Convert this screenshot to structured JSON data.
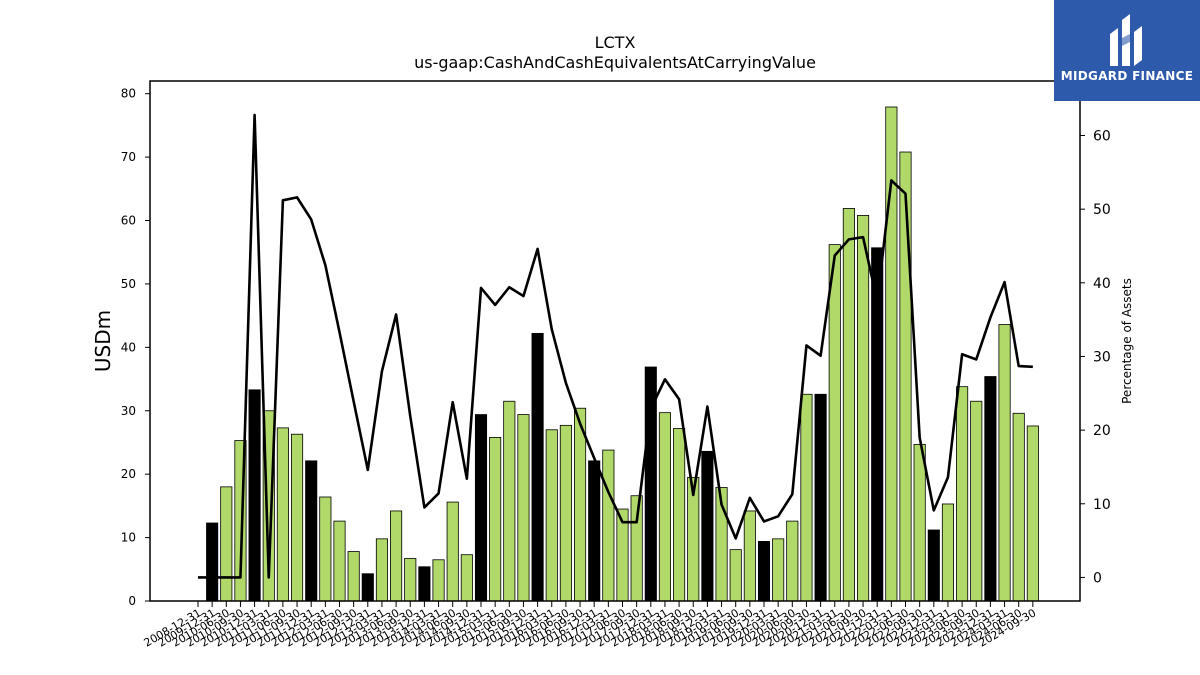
{
  "chart_data": {
    "type": "bar",
    "title": "LCTX",
    "subtitle": "us-gaap:CashAndCashEquivalentsAtCarryingValue",
    "ylabel": "USDm",
    "y2label": "Percentage of Assets",
    "ylim": [
      0,
      82
    ],
    "y2lim": [
      -3.2,
      67.4
    ],
    "yticks": [
      0,
      10,
      20,
      30,
      40,
      50,
      60,
      70,
      80
    ],
    "y2ticks": [
      0,
      10,
      20,
      30,
      40,
      50,
      60
    ],
    "categories": [
      "2008-12-31",
      "2009-12-31",
      "2010-06-30",
      "2010-09-30",
      "2010-12-31",
      "2011-03-31",
      "2011-06-30",
      "2011-09-30",
      "2011-12-31",
      "2012-03-31",
      "2012-06-30",
      "2012-09-30",
      "2012-12-31",
      "2013-03-31",
      "2013-06-30",
      "2013-09-30",
      "2013-12-31",
      "2014-03-31",
      "2014-06-30",
      "2014-09-30",
      "2014-12-31",
      "2015-03-31",
      "2015-06-30",
      "2015-09-30",
      "2015-12-31",
      "2016-03-31",
      "2016-06-30",
      "2016-09-30",
      "2016-12-31",
      "2017-03-31",
      "2017-06-30",
      "2017-09-30",
      "2017-12-31",
      "2018-03-31",
      "2018-06-30",
      "2018-09-30",
      "2018-12-31",
      "2019-03-31",
      "2019-06-30",
      "2019-09-30",
      "2019-12-31",
      "2020-03-31",
      "2020-06-30",
      "2020-09-30",
      "2020-12-31",
      "2021-03-31",
      "2021-06-30",
      "2021-09-30",
      "2021-12-31",
      "2022-03-31",
      "2022-06-30",
      "2022-09-30",
      "2022-12-31",
      "2023-03-31",
      "2023-06-30",
      "2023-09-30",
      "2023-12-31",
      "2024-03-31",
      "2024-06-30",
      "2024-09-30"
    ],
    "series": [
      {
        "type": "bar",
        "values": [
          null,
          12.3,
          18.0,
          25.3,
          33.3,
          30.0,
          27.3,
          26.3,
          22.1,
          16.4,
          12.6,
          7.8,
          4.3,
          9.8,
          14.2,
          6.7,
          5.4,
          6.5,
          15.6,
          7.3,
          29.4,
          25.8,
          31.5,
          29.4,
          42.2,
          27.0,
          27.7,
          30.4,
          22.1,
          23.8,
          14.5,
          16.6,
          36.9,
          29.7,
          27.2,
          19.5,
          23.6,
          17.9,
          8.1,
          14.2,
          9.4,
          9.8,
          12.6,
          32.6,
          32.6,
          56.2,
          61.9,
          60.8,
          55.7,
          77.9,
          70.8,
          24.7,
          11.2,
          15.3,
          33.8,
          31.5,
          35.4,
          43.6,
          29.6,
          27.6
        ],
        "colors": [
          "#b1d96a",
          "#000000",
          "#b1d96a",
          "#b1d96a",
          "#000000",
          "#b1d96a",
          "#b1d96a",
          "#b1d96a",
          "#000000",
          "#b1d96a",
          "#b1d96a",
          "#b1d96a",
          "#000000",
          "#b1d96a",
          "#b1d96a",
          "#b1d96a",
          "#000000",
          "#b1d96a",
          "#b1d96a",
          "#b1d96a",
          "#000000",
          "#b1d96a",
          "#b1d96a",
          "#b1d96a",
          "#000000",
          "#b1d96a",
          "#b1d96a",
          "#b1d96a",
          "#000000",
          "#b1d96a",
          "#b1d96a",
          "#b1d96a",
          "#000000",
          "#b1d96a",
          "#b1d96a",
          "#b1d96a",
          "#000000",
          "#b1d96a",
          "#b1d96a",
          "#b1d96a",
          "#000000",
          "#b1d96a",
          "#b1d96a",
          "#b1d96a",
          "#000000",
          "#b1d96a",
          "#b1d96a",
          "#b1d96a",
          "#000000",
          "#b1d96a",
          "#b1d96a",
          "#b1d96a",
          "#000000",
          "#b1d96a",
          "#b1d96a",
          "#b1d96a",
          "#000000",
          "#b1d96a",
          "#b1d96a",
          "#b1d96a"
        ]
      },
      {
        "type": "line",
        "axis": "right",
        "color": "#000000",
        "values": [
          0,
          0,
          0,
          0,
          62.8,
          0,
          51.2,
          51.6,
          48.6,
          42.4,
          33.3,
          23.9,
          14.6,
          28.0,
          35.7,
          21.9,
          9.5,
          11.4,
          23.8,
          13.4,
          39.3,
          37.0,
          39.4,
          38.2,
          44.6,
          33.7,
          26.4,
          20.9,
          16.2,
          11.6,
          7.5,
          7.5,
          22.9,
          26.9,
          24.2,
          11.2,
          23.2,
          9.9,
          5.3,
          10.8,
          7.6,
          8.3,
          11.3,
          31.5,
          30.1,
          43.7,
          45.9,
          46.2,
          37.5,
          53.9,
          52.1,
          19.0,
          9.1,
          13.6,
          30.3,
          29.6,
          35.3,
          40.1,
          28.7,
          28.6
        ]
      }
    ],
    "legend": "none",
    "grid": false
  },
  "logo": {
    "text": "MIDGARD FINANCE",
    "background": "#2d5aab"
  }
}
